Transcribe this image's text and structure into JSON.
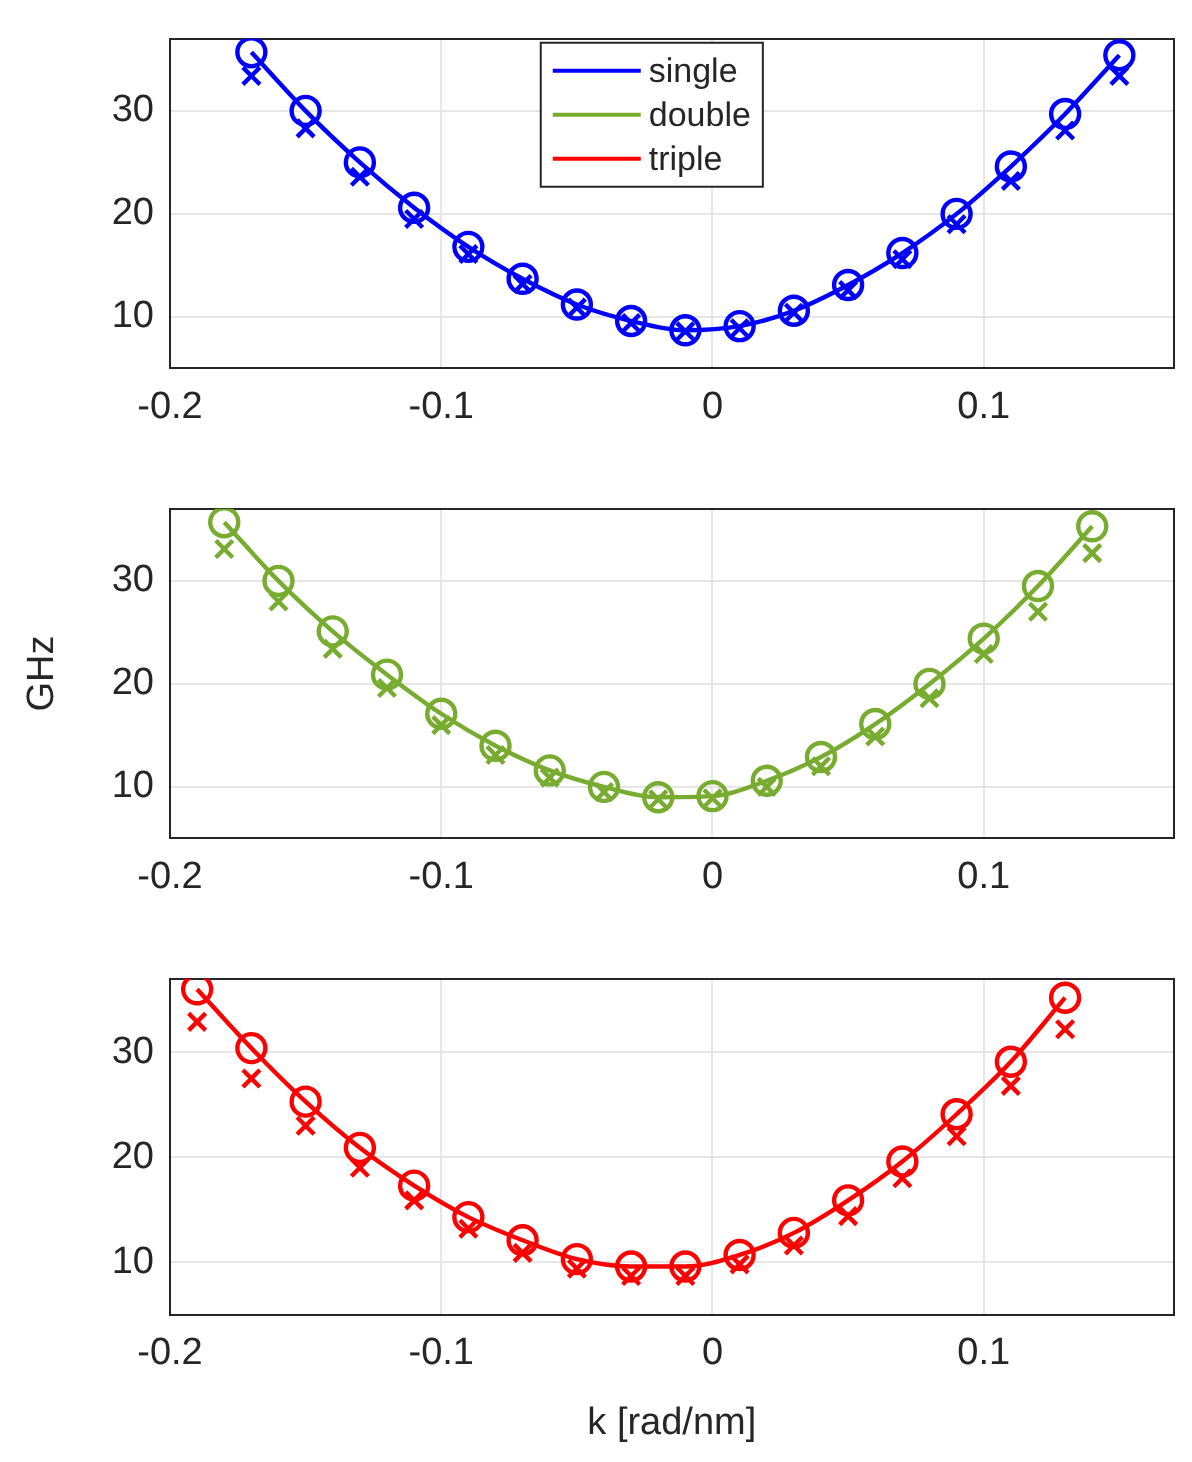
{
  "chart_data": [
    {
      "type": "line",
      "legend": "top",
      "grid": true,
      "xlim": [
        -0.2,
        0.17
      ],
      "xticks": [
        -0.2,
        -0.1,
        0,
        0.1
      ],
      "ylim": [
        5,
        37
      ],
      "yticks": [
        10,
        20,
        30
      ],
      "x": [
        -0.17,
        -0.15,
        -0.13,
        -0.11,
        -0.09,
        -0.07,
        -0.05,
        -0.03,
        -0.01,
        0.01,
        0.03,
        0.05,
        0.07,
        0.09,
        0.11,
        0.13,
        0.15
      ],
      "series": [
        {
          "name": "single",
          "type": "line",
          "marker": "none",
          "line_style": "solid",
          "color": "#0000ff",
          "values": [
            35.7,
            30,
            25,
            20.6,
            16.8,
            13.7,
            11.2,
            9.6,
            8.7,
            9.1,
            10.6,
            13.1,
            16.2,
            20,
            24.6,
            29.7,
            35.4
          ]
        },
        {
          "type": "scatter",
          "marker": "circle",
          "color": "#0000ff",
          "values": [
            35.7,
            30,
            25,
            20.6,
            16.8,
            13.7,
            11.2,
            9.6,
            8.7,
            9.1,
            10.6,
            13.1,
            16.2,
            20,
            24.6,
            29.7,
            35.4
          ]
        },
        {
          "type": "scatter",
          "marker": "cross",
          "color": "#0000ff",
          "values": [
            33.4,
            28.3,
            23.6,
            19.5,
            16.1,
            13.2,
            10.9,
            9.4,
            8.6,
            8.9,
            10.4,
            12.6,
            15.6,
            19,
            23.2,
            28.1,
            33.4
          ]
        }
      ]
    },
    {
      "type": "line",
      "grid": true,
      "ylabel": "GHz",
      "xlim": [
        -0.2,
        0.17
      ],
      "xticks": [
        -0.2,
        -0.1,
        0,
        0.1
      ],
      "ylim": [
        5,
        37
      ],
      "yticks": [
        10,
        20,
        30
      ],
      "x": [
        -0.18,
        -0.16,
        -0.14,
        -0.12,
        -0.1,
        -0.08,
        -0.06,
        -0.04,
        -0.02,
        0,
        0.02,
        0.04,
        0.06,
        0.08,
        0.1,
        0.12,
        0.14
      ],
      "series": [
        {
          "name": "double",
          "type": "line",
          "marker": "none",
          "line_style": "solid",
          "color": "#77ac30",
          "values": [
            35.7,
            30,
            25.1,
            20.9,
            17.1,
            14,
            11.6,
            10,
            9,
            9.1,
            10.6,
            12.9,
            16.1,
            20,
            24.4,
            29.5,
            35.3
          ]
        },
        {
          "type": "scatter",
          "marker": "circle",
          "color": "#77ac30",
          "values": [
            35.7,
            30,
            25.1,
            20.9,
            17.1,
            14,
            11.6,
            10,
            9,
            9.1,
            10.6,
            12.9,
            16.1,
            20,
            24.4,
            29.5,
            35.3
          ]
        },
        {
          "type": "scatter",
          "marker": "cross",
          "color": "#77ac30",
          "values": [
            33.1,
            28,
            23.4,
            19.6,
            16,
            13.1,
            10.9,
            9.5,
            8.8,
            8.9,
            10,
            12,
            14.9,
            18.6,
            22.9,
            27,
            32.7
          ]
        }
      ]
    },
    {
      "type": "line",
      "grid": true,
      "xlabel": "k [rad/nm]",
      "xlim": [
        -0.2,
        0.17
      ],
      "xticks": [
        -0.2,
        -0.1,
        0,
        0.1
      ],
      "ylim": [
        5,
        37
      ],
      "yticks": [
        10,
        20,
        30
      ],
      "x": [
        -0.19,
        -0.17,
        -0.15,
        -0.13,
        -0.11,
        -0.09,
        -0.07,
        -0.05,
        -0.03,
        -0.01,
        0.01,
        0.03,
        0.05,
        0.07,
        0.09,
        0.11,
        0.13
      ],
      "series": [
        {
          "name": "triple",
          "type": "line",
          "marker": "none",
          "line_style": "solid",
          "color": "#ff0000",
          "values": [
            36,
            30.4,
            25.3,
            20.9,
            17.3,
            14.3,
            12.1,
            10.3,
            9.6,
            9.6,
            10.7,
            12.8,
            15.9,
            19.6,
            24.1,
            29.1,
            35.2
          ]
        },
        {
          "type": "scatter",
          "marker": "circle",
          "color": "#ff0000",
          "values": [
            36,
            30.4,
            25.3,
            20.9,
            17.3,
            14.3,
            12.1,
            10.3,
            9.6,
            9.6,
            10.7,
            12.8,
            15.9,
            19.6,
            24.1,
            29.1,
            35.2
          ]
        },
        {
          "type": "scatter",
          "marker": "cross",
          "color": "#ff0000",
          "values": [
            32.9,
            27.5,
            23,
            19,
            15.9,
            13.2,
            10.9,
            9.4,
            8.7,
            8.7,
            9.8,
            11.6,
            14.4,
            18,
            22,
            26.8,
            32.2
          ]
        }
      ]
    }
  ]
}
